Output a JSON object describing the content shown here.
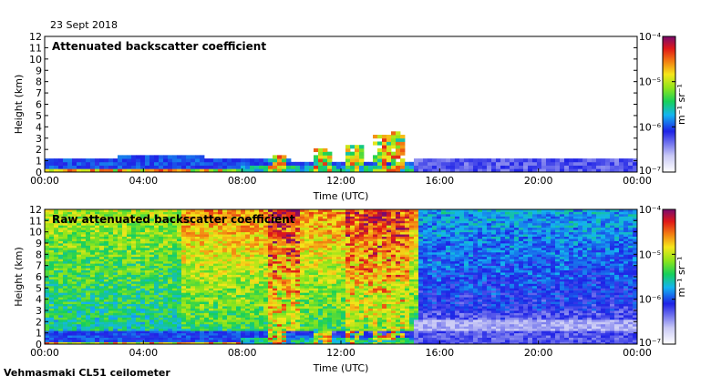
{
  "header": {
    "date": "23 Sept 2018"
  },
  "footer": {
    "station": "Vehmasmaki CL51 ceilometer"
  },
  "chart_data": [
    {
      "type": "heatmap",
      "title": "Attenuated backscatter coefficient",
      "xlabel": "Time (UTC)",
      "ylabel": "Height (km)",
      "x_ticks": [
        "00:00",
        "04:00",
        "08:00",
        "12:00",
        "16:00",
        "20:00",
        "00:00"
      ],
      "y_ticks": [
        "0",
        "1",
        "2",
        "3",
        "4",
        "5",
        "6",
        "7",
        "8",
        "9",
        "10",
        "11",
        "12"
      ],
      "xlim_hours": [
        0,
        24
      ],
      "ylim_km": [
        0,
        12
      ],
      "colorbar": {
        "label": "m⁻¹ sr⁻¹",
        "ticks": [
          "10⁻⁴",
          "10⁻⁵",
          "10⁻⁶",
          "10⁻⁷"
        ],
        "range": [
          1e-07,
          0.0001
        ],
        "scale": "log"
      },
      "features": {
        "boundary_layer_top_km": 1.2,
        "cloud_events": [
          {
            "start_h": 12.7,
            "end_h": 14.8,
            "max_height_km": 3.5
          }
        ]
      }
    },
    {
      "type": "heatmap",
      "title": "Raw attenuated backscatter coefficient",
      "xlabel": "Time (UTC)",
      "ylabel": "Height (km)",
      "x_ticks": [
        "00:00",
        "04:00",
        "08:00",
        "12:00",
        "16:00",
        "20:00",
        "00:00"
      ],
      "y_ticks": [
        "0",
        "1",
        "2",
        "3",
        "4",
        "5",
        "6",
        "7",
        "8",
        "9",
        "10",
        "11",
        "12"
      ],
      "xlim_hours": [
        0,
        24
      ],
      "ylim_km": [
        0,
        12
      ],
      "colorbar": {
        "label": "m⁻¹ sr⁻¹",
        "ticks": [
          "10⁻⁴",
          "10⁻⁵",
          "10⁻⁶",
          "10⁻⁷"
        ],
        "range": [
          1e-07,
          0.0001
        ],
        "scale": "log"
      },
      "features": {
        "noisy_daytime_start_h": 0,
        "noisy_daytime_end_h": 15,
        "quiet_period_start_h": 15
      }
    }
  ]
}
